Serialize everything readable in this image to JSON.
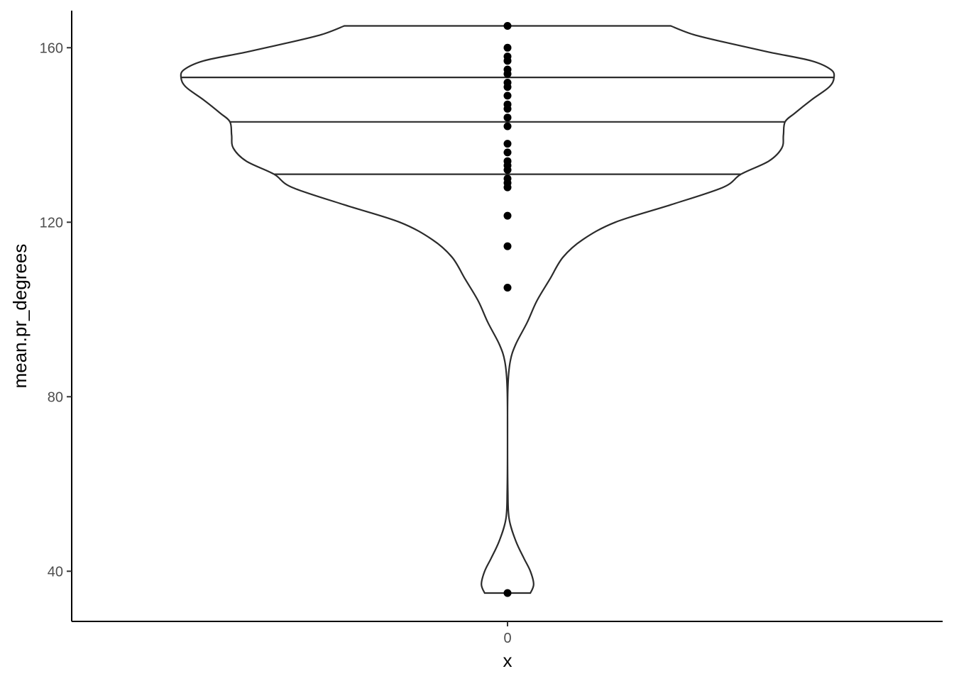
{
  "chart_data": {
    "type": "violin",
    "title": "",
    "xlabel": "x",
    "ylabel": "mean.pr_degrees",
    "x_categories": [
      "0"
    ],
    "y_ticks": [
      40,
      80,
      120,
      160
    ],
    "ylim": [
      28.5,
      168.5
    ],
    "grid": false,
    "legend": "none",
    "quantile_lines": [
      131,
      143,
      153.2
    ],
    "violin_range": [
      35,
      165
    ],
    "violin_density_profile": [
      {
        "y": 35,
        "density": 0.07
      },
      {
        "y": 37,
        "density": 0.08
      },
      {
        "y": 40,
        "density": 0.07
      },
      {
        "y": 43,
        "density": 0.05
      },
      {
        "y": 47,
        "density": 0.025
      },
      {
        "y": 52,
        "density": 0.005
      },
      {
        "y": 58,
        "density": 0.001
      },
      {
        "y": 70,
        "density": 0.0
      },
      {
        "y": 82,
        "density": 0.001
      },
      {
        "y": 88,
        "density": 0.008
      },
      {
        "y": 92,
        "density": 0.025
      },
      {
        "y": 97,
        "density": 0.06
      },
      {
        "y": 102,
        "density": 0.09
      },
      {
        "y": 107,
        "density": 0.13
      },
      {
        "y": 112,
        "density": 0.17
      },
      {
        "y": 116,
        "density": 0.23
      },
      {
        "y": 120,
        "density": 0.33
      },
      {
        "y": 124,
        "density": 0.5
      },
      {
        "y": 128,
        "density": 0.66
      },
      {
        "y": 131,
        "density": 0.715
      },
      {
        "y": 134,
        "density": 0.8
      },
      {
        "y": 137,
        "density": 0.84
      },
      {
        "y": 140,
        "density": 0.845
      },
      {
        "y": 143,
        "density": 0.85
      },
      {
        "y": 145,
        "density": 0.88
      },
      {
        "y": 148,
        "density": 0.93
      },
      {
        "y": 151,
        "density": 0.985
      },
      {
        "y": 153.2,
        "density": 1.0
      },
      {
        "y": 155,
        "density": 0.99
      },
      {
        "y": 157,
        "density": 0.93
      },
      {
        "y": 159,
        "density": 0.8
      },
      {
        "y": 161,
        "density": 0.68
      },
      {
        "y": 163,
        "density": 0.57
      },
      {
        "y": 165,
        "density": 0.5
      }
    ],
    "points": [
      35,
      105,
      114.5,
      121.5,
      128,
      129,
      130,
      132,
      133,
      134,
      136,
      138,
      142,
      144,
      146,
      147,
      149,
      151,
      152,
      154,
      155,
      157,
      158,
      160,
      165
    ]
  }
}
